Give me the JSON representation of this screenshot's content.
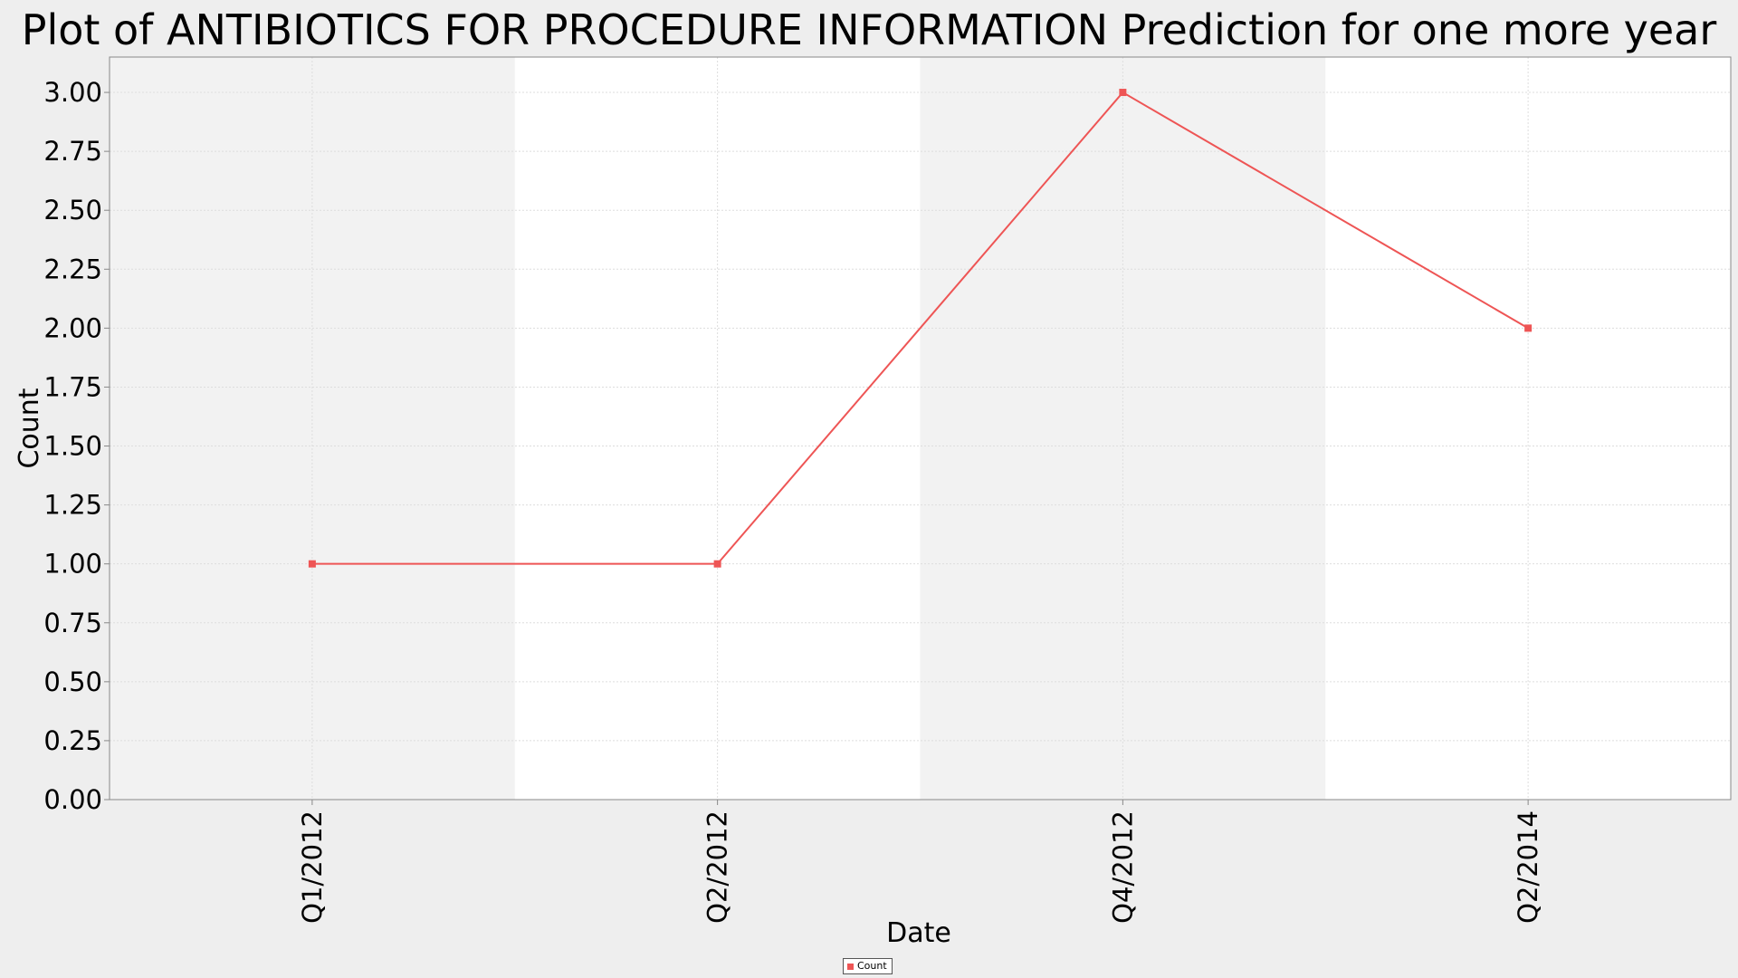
{
  "chart_data": {
    "type": "line",
    "title": "Plot of ANTIBIOTICS FOR PROCEDURE INFORMATION Prediction for one more year",
    "xlabel": "Date",
    "ylabel": "Count",
    "categories": [
      "Q1/2012",
      "Q2/2012",
      "Q4/2012",
      "Q2/2014"
    ],
    "series": [
      {
        "name": "Count",
        "values": [
          1,
          1,
          3,
          2
        ],
        "color": "#ee5555"
      }
    ],
    "ylim": [
      0,
      3.15
    ],
    "yticks": [
      "0.00",
      "0.25",
      "0.50",
      "0.75",
      "1.00",
      "1.25",
      "1.50",
      "1.75",
      "2.00",
      "2.25",
      "2.50",
      "2.75",
      "3.00"
    ],
    "grid": true,
    "legend_position": "bottom-center",
    "colors": {
      "background": "#eeeeee",
      "band_shaded": "#f2f2f2",
      "band_plain": "#ffffff",
      "gridline": "#dddddd",
      "axis": "#888888"
    }
  }
}
